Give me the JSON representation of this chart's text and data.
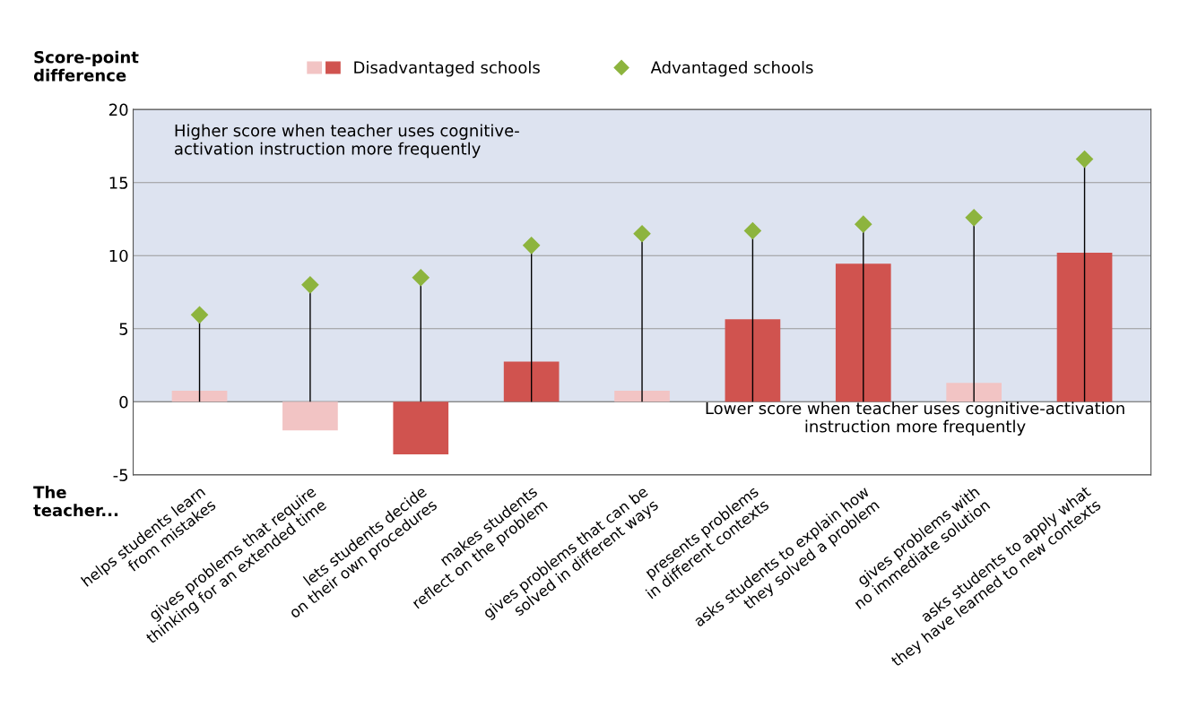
{
  "chart_data": {
    "type": "bar",
    "ylabel": "Score-point\ndifference",
    "categories": [
      "helps students learn\nfrom mistakes",
      "gives problems that require\nthinking for an extended time",
      "lets students decide\non their own procedures",
      "makes students\nreflect on the problem",
      "gives problems that can be\nsolved in different ways",
      "presents problems\nin different contexts",
      "asks students to explain how\nthey solved a problem",
      "gives problems with\nno immediate solution",
      "asks students to apply what\nthey have learned to new contexts"
    ],
    "series": [
      {
        "name": "Disadvantaged schools",
        "color": "#d0534f",
        "colors": [
          "#f2c4c4",
          "#f2c4c4",
          "#d0534f",
          "#d0534f",
          "#f2c4c4",
          "#d0534f",
          "#d0534f",
          "#f2c4c4",
          "#d0534f"
        ],
        "values": [
          0.75,
          -1.95,
          -3.6,
          2.75,
          0.75,
          5.65,
          9.45,
          1.3,
          10.2
        ]
      },
      {
        "name": "Advantaged schools",
        "type": "lollipop",
        "color": "#8db43e",
        "marker": "diamond",
        "values": [
          5.95,
          8.0,
          8.5,
          10.7,
          11.5,
          11.7,
          12.15,
          12.6,
          16.6
        ]
      }
    ],
    "ylim": [
      -5,
      20
    ],
    "yticks": [
      -5,
      0,
      5,
      10,
      15,
      20
    ],
    "grid": "y",
    "legend": "top",
    "bands": [
      {
        "axis": "y",
        "from": 0,
        "to": 20,
        "color": "#dde3f0"
      }
    ],
    "annotations": [
      "Higher score when teacher uses cognitive-\nactivation instruction more frequently",
      "Lower score when teacher uses cognitive-activation\ninstruction more frequently",
      "The\nteacher..."
    ]
  }
}
